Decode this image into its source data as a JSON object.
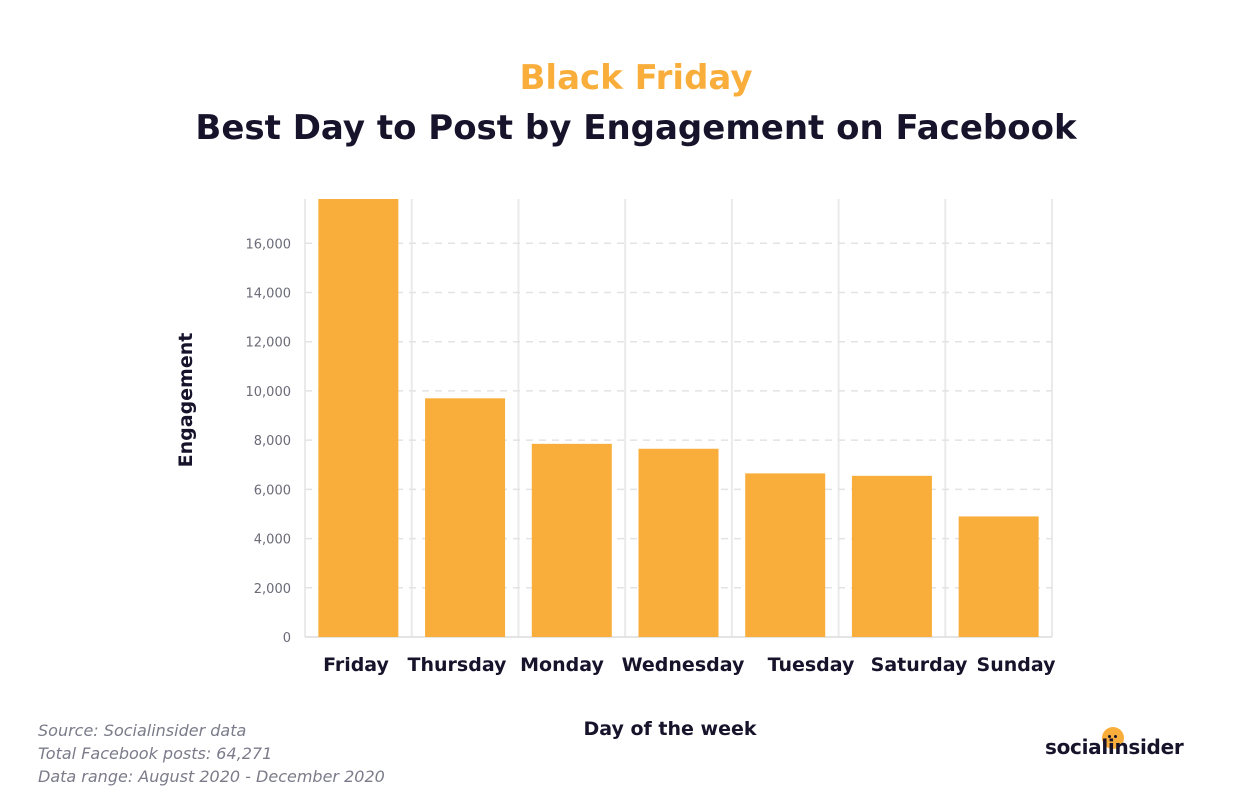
{
  "chart_data": {
    "type": "bar",
    "title": "Black Friday",
    "subtitle": "Best Day to Post by Engagement on Facebook",
    "xlabel": "Day of the week",
    "ylabel": "Engagement",
    "categories": [
      "Friday",
      "Thursday",
      "Monday",
      "Wednesday",
      "Tuesday",
      "Saturday",
      "Sunday"
    ],
    "values": [
      17800,
      9700,
      7850,
      7650,
      6650,
      6550,
      4900
    ],
    "ylim": [
      0,
      17800
    ],
    "yticks": [
      0,
      2000,
      4000,
      6000,
      8000,
      10000,
      12000,
      14000,
      16000
    ],
    "ytick_labels": [
      "0",
      "2,000",
      "4,000",
      "6,000",
      "8,000",
      "10,000",
      "12,000",
      "14,000",
      "16,000"
    ],
    "grid": true,
    "bar_color": "#f9ae3b",
    "title_color": "#f9ae3b"
  },
  "footer": {
    "source": "Source: Socialinsider data",
    "posts": "Total Facebook posts: 64,271",
    "range": "Data range: August 2020 - December 2020"
  },
  "brand": {
    "name": "socialinsider",
    "logo": "socialinsider-logo",
    "accent": "#f9ae3b"
  }
}
